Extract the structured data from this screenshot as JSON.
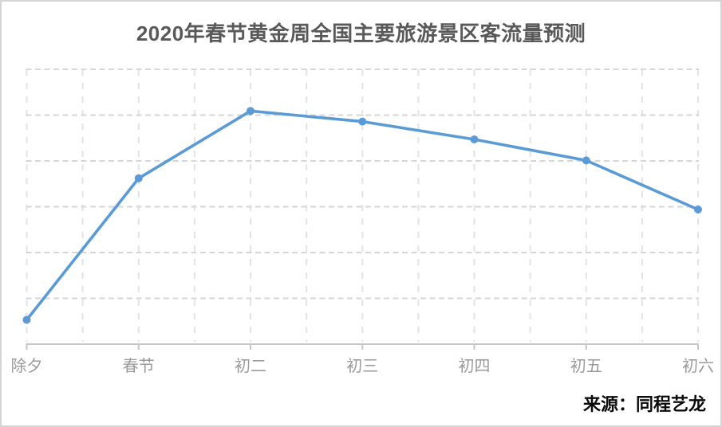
{
  "page": {
    "title": "2020年春节黄金周全国主要旅游景区客流量预测",
    "source": "来源：同程艺龙"
  },
  "colors": {
    "line": "#5B9BD5",
    "marker": "#5B9BD5",
    "title_text": "#595959",
    "x_label_text": "#9a9a9a",
    "h_gridline": "#d6d6d6",
    "v_gridline": "#e3e3e3",
    "axis_line": "#c6c6c6",
    "source_text": "#0b0b0b",
    "frame_border": "#d4d4d4",
    "background": "#ffffff"
  },
  "chart_data": {
    "type": "line",
    "title": "2020年春节黄金周全国主要旅游景区客流量预测",
    "categories": [
      "除夕",
      "春节",
      "初二",
      "初三",
      "初四",
      "初五",
      "初六"
    ],
    "values": [
      0.53,
      3.62,
      5.09,
      4.86,
      4.47,
      4.01,
      2.94
    ],
    "xlabel": "",
    "ylabel": "",
    "ylim": [
      0,
      6
    ],
    "y_gridline_step": 1,
    "y_tick_labels_visible": false,
    "grid": {
      "horizontal": "dashed",
      "vertical": "dashed, at half-category intervals"
    },
    "legend_position": "none",
    "marker": "circle",
    "note": "no numeric axis labels shown in source image; values estimated from gridline positions (peak at 初二)"
  }
}
